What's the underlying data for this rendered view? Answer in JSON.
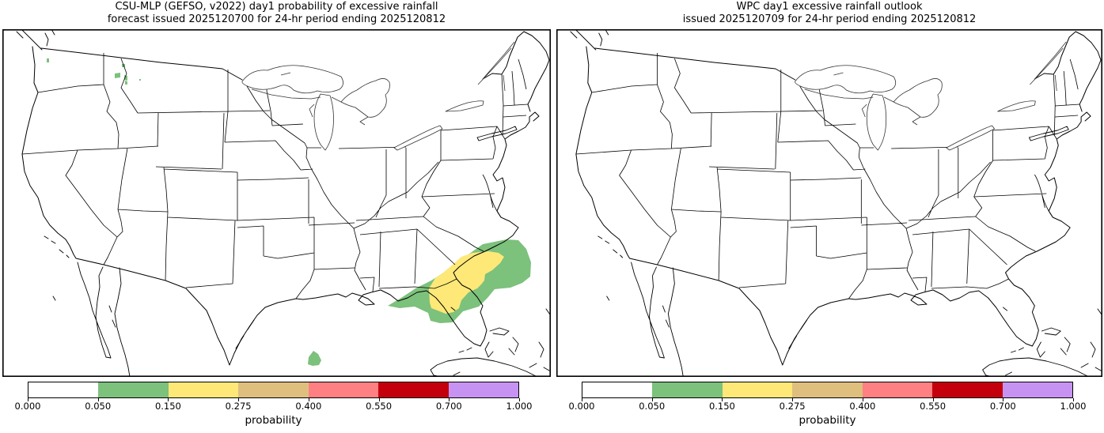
{
  "panels": [
    {
      "key": "left",
      "title_line1": "CSU-MLP (GEFSO, v2022) day1 probability of excessive rainfall",
      "title_line2": "forecast issued 2025120700 for 24-hr period ending 2025120812",
      "has_forecast_shading": true
    },
    {
      "key": "right",
      "title_line1": "WPC day1 excessive rainfall outlook",
      "title_line2": "issued 2025120709 for 24-hr period ending 2025120812",
      "has_forecast_shading": false
    }
  ],
  "colorbar": {
    "label": "probability",
    "tick_labels": [
      "0.000",
      "0.050",
      "0.150",
      "0.275",
      "0.400",
      "0.550",
      "0.700",
      "1.000"
    ],
    "segment_colors": [
      "#ffffff",
      "#7cc17c",
      "#fde878",
      "#dfbf7e",
      "#ff8082",
      "#c4000c",
      "#c793f2"
    ]
  },
  "colors": {
    "green": "#7cc17c",
    "yellow": "#fde878",
    "tan": "#dfbf7e",
    "salmon": "#ff8082",
    "red": "#c4000c",
    "purple": "#c793f2"
  },
  "forecast_overlay": {
    "panel": "left",
    "polygons": [
      {
        "name": "southeast-green-0.05",
        "color_key": "green",
        "points": [
          [
            487,
            350
          ],
          [
            507,
            338
          ],
          [
            522,
            328
          ],
          [
            542,
            318
          ],
          [
            562,
            305
          ],
          [
            582,
            290
          ],
          [
            607,
            272
          ],
          [
            637,
            266
          ],
          [
            652,
            267
          ],
          [
            662,
            278
          ],
          [
            668,
            295
          ],
          [
            667,
            313
          ],
          [
            657,
            321
          ],
          [
            642,
            327
          ],
          [
            622,
            329
          ],
          [
            613,
            340
          ],
          [
            602,
            351
          ],
          [
            582,
            357
          ],
          [
            569,
            371
          ],
          [
            553,
            372
          ],
          [
            541,
            369
          ],
          [
            538,
            359
          ],
          [
            521,
            351
          ],
          [
            502,
            353
          ]
        ]
      },
      {
        "name": "southeast-yellow-0.15",
        "color_key": "yellow",
        "points": [
          [
            540,
            346
          ],
          [
            539,
            328
          ],
          [
            547,
            315
          ],
          [
            557,
            308
          ],
          [
            569,
            298
          ],
          [
            580,
            288
          ],
          [
            594,
            283
          ],
          [
            614,
            281
          ],
          [
            627,
            283
          ],
          [
            634,
            288
          ],
          [
            629,
            296
          ],
          [
            619,
            305
          ],
          [
            610,
            310
          ],
          [
            609,
            318
          ],
          [
            605,
            323
          ],
          [
            600,
            328
          ],
          [
            589,
            333
          ],
          [
            580,
            343
          ],
          [
            577,
            353
          ],
          [
            570,
            358
          ],
          [
            560,
            360
          ],
          [
            550,
            356
          ],
          [
            542,
            353
          ]
        ]
      },
      {
        "name": "gulf-green-0.05",
        "color_key": "green",
        "points": [
          [
            386,
            424
          ],
          [
            387,
            415
          ],
          [
            393,
            407
          ],
          [
            399,
            411
          ],
          [
            403,
            419
          ],
          [
            400,
            425
          ],
          [
            392,
            426
          ]
        ]
      },
      {
        "name": "nw-speck-1",
        "color_key": "green",
        "points": [
          [
            56,
            37
          ],
          [
            59,
            37
          ],
          [
            59,
            42
          ],
          [
            56,
            42
          ]
        ]
      },
      {
        "name": "nw-speck-2",
        "color_key": "green",
        "points": [
          [
            151,
            44
          ],
          [
            155,
            44
          ],
          [
            155,
            48
          ],
          [
            151,
            48
          ]
        ]
      },
      {
        "name": "nw-speck-3",
        "color_key": "green",
        "points": [
          [
            142,
            56
          ],
          [
            149,
            55
          ],
          [
            149,
            61
          ],
          [
            142,
            62
          ]
        ]
      },
      {
        "name": "nw-speck-4",
        "color_key": "green",
        "points": [
          [
            154,
            58
          ],
          [
            158,
            59
          ],
          [
            158,
            65
          ],
          [
            154,
            64
          ]
        ]
      },
      {
        "name": "nw-speck-5",
        "color_key": "green",
        "points": [
          [
            155,
            65
          ],
          [
            158,
            66
          ],
          [
            158,
            70
          ],
          [
            155,
            70
          ]
        ]
      },
      {
        "name": "nw-speck-6",
        "color_key": "green",
        "points": [
          [
            173,
            63
          ],
          [
            175,
            63
          ],
          [
            175,
            65
          ],
          [
            173,
            65
          ]
        ]
      }
    ]
  }
}
